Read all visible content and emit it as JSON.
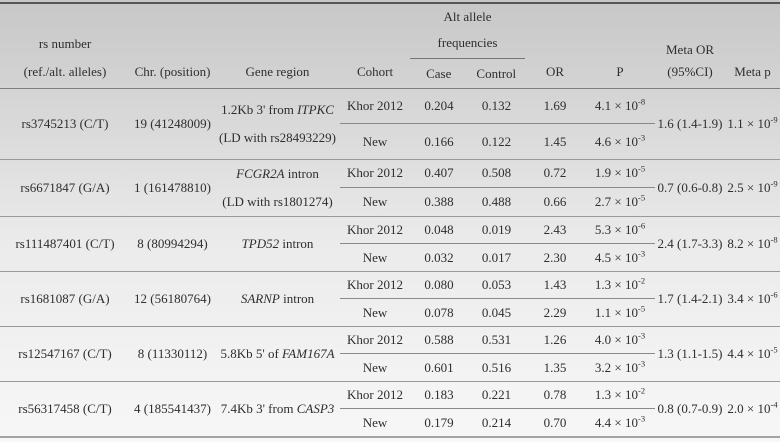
{
  "table": {
    "headers": {
      "rs": [
        "rs number",
        "(ref./alt. alleles)"
      ],
      "chr": "Chr. (position)",
      "gene": "Gene region",
      "cohort": "Cohort",
      "alt_group": [
        "Alt allele",
        "frequencies"
      ],
      "case": "Case",
      "control": "Control",
      "or": "OR",
      "p": "P",
      "meta_or": [
        "Meta OR",
        "(95%CI)"
      ],
      "meta_p": "Meta p"
    },
    "rows": [
      {
        "rs": "rs3745213 (C/T)",
        "chr": "19 (41248009)",
        "gene": [
          [
            {
              "t": "1.2Kb 3' from "
            },
            {
              "t": "ITPKC",
              "i": true
            }
          ],
          [
            {
              "t": "(LD with rs28493229)"
            }
          ]
        ],
        "cohorts": [
          {
            "name": "Khor 2012",
            "case": "0.204",
            "control": "0.132",
            "or": "1.69",
            "p": {
              "base": "4.1 × 10",
              "exp": "-8"
            }
          },
          {
            "name": "New",
            "case": "0.166",
            "control": "0.122",
            "or": "1.45",
            "p": {
              "base": "4.6 × 10",
              "exp": "-3"
            }
          }
        ],
        "meta_or": "1.6 (1.4-1.9)",
        "meta_p": {
          "base": "1.1 × 10",
          "exp": "-9"
        }
      },
      {
        "rs": "rs6671847 (G/A)",
        "chr": "1 (161478810)",
        "gene": [
          [
            {
              "t": "FCGR2A",
              "i": true
            },
            {
              "t": " intron"
            }
          ],
          [
            {
              "t": "(LD with rs1801274)"
            }
          ]
        ],
        "cohorts": [
          {
            "name": "Khor 2012",
            "case": "0.407",
            "control": "0.508",
            "or": "0.72",
            "p": {
              "base": "1.9 × 10",
              "exp": "-5"
            }
          },
          {
            "name": "New",
            "case": "0.388",
            "control": "0.488",
            "or": "0.66",
            "p": {
              "base": "2.7 × 10",
              "exp": "-5"
            }
          }
        ],
        "meta_or": "0.7 (0.6-0.8)",
        "meta_p": {
          "base": "2.5 × 10",
          "exp": "-9"
        }
      },
      {
        "rs": "rs111487401 (C/T)",
        "chr": "8 (80994294)",
        "gene": [
          [
            {
              "t": "TPD52",
              "i": true
            },
            {
              "t": " intron"
            }
          ]
        ],
        "cohorts": [
          {
            "name": "Khor 2012",
            "case": "0.048",
            "control": "0.019",
            "or": "2.43",
            "p": {
              "base": "5.3 × 10",
              "exp": "-6"
            }
          },
          {
            "name": "New",
            "case": "0.032",
            "control": "0.017",
            "or": "2.30",
            "p": {
              "base": "4.5 × 10",
              "exp": "-3"
            }
          }
        ],
        "meta_or": "2.4 (1.7-3.3)",
        "meta_p": {
          "base": "8.2 × 10",
          "exp": "-8"
        }
      },
      {
        "rs": "rs1681087 (G/A)",
        "chr": "12 (56180764)",
        "gene": [
          [
            {
              "t": "SARNP",
              "i": true
            },
            {
              "t": " intron"
            }
          ]
        ],
        "cohorts": [
          {
            "name": "Khor 2012",
            "case": "0.080",
            "control": "0.053",
            "or": "1.43",
            "p": {
              "base": "1.3 × 10",
              "exp": "-2"
            }
          },
          {
            "name": "New",
            "case": "0.078",
            "control": "0.045",
            "or": "2.29",
            "p": {
              "base": "1.1 × 10",
              "exp": "-5"
            }
          }
        ],
        "meta_or": "1.7 (1.4-2.1)",
        "meta_p": {
          "base": "3.4 × 10",
          "exp": "-6"
        }
      },
      {
        "rs": "rs12547167 (C/T)",
        "chr": "8 (11330112)",
        "gene": [
          [
            {
              "t": "5.8Kb 5' of "
            },
            {
              "t": "FAM167A",
              "i": true
            }
          ]
        ],
        "cohorts": [
          {
            "name": "Khor 2012",
            "case": "0.588",
            "control": "0.531",
            "or": "1.26",
            "p": {
              "base": "4.0 × 10",
              "exp": "-3"
            }
          },
          {
            "name": "New",
            "case": "0.601",
            "control": "0.516",
            "or": "1.35",
            "p": {
              "base": "3.2 × 10",
              "exp": "-3"
            }
          }
        ],
        "meta_or": "1.3 (1.1-1.5)",
        "meta_p": {
          "base": "4.4 × 10",
          "exp": "-5"
        }
      },
      {
        "rs": "rs56317458 (C/T)",
        "chr": "4 (185541437)",
        "gene": [
          [
            {
              "t": "7.4Kb 3' from "
            },
            {
              "t": "CASP3",
              "i": true
            }
          ]
        ],
        "cohorts": [
          {
            "name": "Khor 2012",
            "case": "0.183",
            "control": "0.221",
            "or": "0.78",
            "p": {
              "base": "1.3 × 10",
              "exp": "-2"
            }
          },
          {
            "name": "New",
            "case": "0.179",
            "control": "0.214",
            "or": "0.70",
            "p": {
              "base": "4.4 × 10",
              "exp": "-3"
            }
          }
        ],
        "meta_or": "0.8 (0.7-0.9)",
        "meta_p": {
          "base": "2.0 × 10",
          "exp": "-4"
        }
      }
    ]
  }
}
